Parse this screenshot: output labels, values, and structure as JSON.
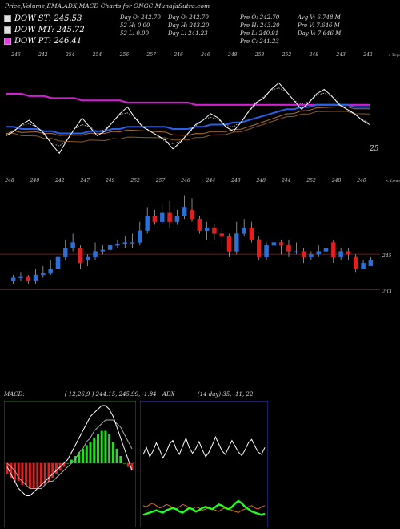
{
  "title": "Price,Volume,EMA,ADX,MACD Charts for ONGC MunafaSutra.com",
  "legend": [
    {
      "label": "DOW ST: 245.53",
      "color": "#e0e0e0"
    },
    {
      "label": "DOW MT: 245.72",
      "color": "#e0e0e0"
    },
    {
      "label": "DOW PT: 246.41",
      "color": "#e040e0"
    }
  ],
  "stats": {
    "col1": [
      "Day O: 242.70",
      "52 H: 0.00",
      "Day H: 243.20",
      "Day L: 241.23"
    ],
    "col2": [
      "Pre O: 242.70",
      "Pre H: 243.20",
      "Pre L: 240.91",
      "Pre C: 241.23"
    ],
    "col3": [
      "Avg V: 6.748 M",
      "Pre V: 7.646 M",
      "Day V: 7.646 M"
    ],
    "col1b": [
      "52 L: 0.00"
    ]
  },
  "macd_header": {
    "label": "MACD:",
    "values": "( 12,26,9 ) 244.15, 245.99, -1.84"
  },
  "adx_header": {
    "label": "ADX",
    "values": "(14 day) 35, -11, 22"
  },
  "colors": {
    "up": "#2c6fd6",
    "down": "#e02020",
    "ema_blue": "#2a60e8",
    "ema_magenta": "#d020d0",
    "macd_hist_up": "#22dd22",
    "macd_hist_down": "#dd2222",
    "grid_red": "#a01010",
    "adx_green": "#22ff22",
    "adx_orange": "#e07010"
  },
  "chart_data": [
    {
      "type": "line",
      "name_ref": "ema-panel",
      "top_tick_labels": [
        "246",
        "242",
        "254",
        "254",
        "256",
        "257",
        "246",
        "246",
        "248",
        "258",
        "252",
        "248",
        "243",
        "242"
      ],
      "right_note": "< Tops",
      "side_label": "25",
      "price_line": [
        228,
        230,
        233,
        235,
        232,
        229,
        224,
        220,
        226,
        231,
        236,
        232,
        228,
        230,
        234,
        238,
        241,
        236,
        232,
        230,
        228,
        226,
        222,
        225,
        229,
        233,
        235,
        238,
        236,
        232,
        230,
        234,
        239,
        243,
        245,
        249,
        252,
        248,
        244,
        240,
        243,
        247,
        249,
        246,
        242,
        240,
        238,
        235,
        233
      ],
      "ema_blue": [
        232,
        232,
        231,
        231,
        231,
        230,
        230,
        229,
        229,
        229,
        229,
        230,
        230,
        230,
        231,
        231,
        232,
        232,
        232,
        232,
        232,
        232,
        231,
        231,
        231,
        232,
        232,
        233,
        233,
        233,
        234,
        234,
        235,
        236,
        237,
        238,
        239,
        240,
        240,
        241,
        241,
        242,
        242,
        242,
        242,
        242,
        241,
        241,
        241
      ],
      "ema_magenta": [
        247,
        247,
        247,
        246,
        246,
        246,
        245,
        245,
        245,
        245,
        244,
        244,
        244,
        244,
        244,
        244,
        243,
        243,
        243,
        243,
        243,
        243,
        243,
        243,
        243,
        242,
        242,
        242,
        242,
        242,
        242,
        242,
        242,
        242,
        242,
        242,
        242,
        242,
        242,
        242,
        242,
        242,
        242,
        242,
        242,
        242,
        242,
        242,
        242
      ]
    },
    {
      "type": "bar",
      "name_ref": "candle-panel",
      "top_tick_labels": [
        "248",
        "240",
        "242",
        "247",
        "249",
        "252",
        "257",
        "246",
        "244",
        "248",
        "248",
        "244",
        "252",
        "248",
        "240"
      ],
      "right_note": "< Lows",
      "levels": [
        {
          "label": "245",
          "value": 245
        },
        {
          "label": "233",
          "value": 233
        }
      ],
      "candles": [
        {
          "o": 236,
          "c": 237,
          "h": 238,
          "l": 235
        },
        {
          "o": 237,
          "c": 237.5,
          "h": 239,
          "l": 236
        },
        {
          "o": 237.5,
          "c": 236,
          "h": 238,
          "l": 235
        },
        {
          "o": 236,
          "c": 238,
          "h": 240,
          "l": 235
        },
        {
          "o": 238,
          "c": 238.5,
          "h": 241,
          "l": 237
        },
        {
          "o": 238.5,
          "c": 240,
          "h": 243,
          "l": 238
        },
        {
          "o": 240,
          "c": 244,
          "h": 246,
          "l": 239
        },
        {
          "o": 244,
          "c": 247,
          "h": 250,
          "l": 243
        },
        {
          "o": 247,
          "c": 249,
          "h": 252,
          "l": 246
        },
        {
          "o": 247,
          "c": 242,
          "h": 248,
          "l": 240
        },
        {
          "o": 243,
          "c": 244,
          "h": 245,
          "l": 241
        },
        {
          "o": 244,
          "c": 246,
          "h": 249,
          "l": 243
        },
        {
          "o": 246,
          "c": 246.5,
          "h": 248,
          "l": 245
        },
        {
          "o": 246.5,
          "c": 248,
          "h": 252,
          "l": 245
        },
        {
          "o": 248,
          "c": 248.5,
          "h": 250,
          "l": 247
        },
        {
          "o": 248.5,
          "c": 249,
          "h": 251,
          "l": 247
        },
        {
          "o": 249,
          "c": 249,
          "h": 252,
          "l": 247
        },
        {
          "o": 249,
          "c": 253,
          "h": 256,
          "l": 248
        },
        {
          "o": 253,
          "c": 258,
          "h": 261,
          "l": 252
        },
        {
          "o": 258,
          "c": 256,
          "h": 260,
          "l": 255
        },
        {
          "o": 256,
          "c": 259,
          "h": 262,
          "l": 255
        },
        {
          "o": 259,
          "c": 256,
          "h": 263,
          "l": 254
        },
        {
          "o": 256,
          "c": 258,
          "h": 260,
          "l": 255
        },
        {
          "o": 258,
          "c": 261,
          "h": 265,
          "l": 257
        },
        {
          "o": 260,
          "c": 257,
          "h": 264,
          "l": 256
        },
        {
          "o": 257,
          "c": 253,
          "h": 258,
          "l": 252
        },
        {
          "o": 253,
          "c": 254,
          "h": 256,
          "l": 250
        },
        {
          "o": 254,
          "c": 252,
          "h": 255,
          "l": 250
        },
        {
          "o": 252,
          "c": 251,
          "h": 254,
          "l": 248
        },
        {
          "o": 251,
          "c": 246,
          "h": 252,
          "l": 244
        },
        {
          "o": 246,
          "c": 252,
          "h": 256,
          "l": 245
        },
        {
          "o": 252,
          "c": 254,
          "h": 257,
          "l": 251
        },
        {
          "o": 254,
          "c": 250,
          "h": 256,
          "l": 249
        },
        {
          "o": 250,
          "c": 244,
          "h": 251,
          "l": 243
        },
        {
          "o": 244,
          "c": 248,
          "h": 249,
          "l": 243
        },
        {
          "o": 248,
          "c": 249,
          "h": 250,
          "l": 246
        },
        {
          "o": 249,
          "c": 248,
          "h": 250,
          "l": 245
        },
        {
          "o": 248,
          "c": 246,
          "h": 250,
          "l": 244
        },
        {
          "o": 246,
          "c": 246,
          "h": 249,
          "l": 245
        },
        {
          "o": 246,
          "c": 244,
          "h": 247,
          "l": 242
        },
        {
          "o": 244,
          "c": 245,
          "h": 246,
          "l": 243
        },
        {
          "o": 245,
          "c": 246,
          "h": 248,
          "l": 244
        },
        {
          "o": 246,
          "c": 247,
          "h": 249,
          "l": 245
        },
        {
          "o": 249,
          "c": 244,
          "h": 250,
          "l": 242
        },
        {
          "o": 244,
          "c": 246,
          "h": 247,
          "l": 243
        },
        {
          "o": 246,
          "c": 245,
          "h": 247,
          "l": 243
        },
        {
          "o": 244,
          "c": 240,
          "h": 245,
          "l": 239
        },
        {
          "o": 240,
          "c": 242,
          "h": 243,
          "l": 240
        },
        {
          "o": 241,
          "c": 243,
          "h": 244,
          "l": 241
        }
      ]
    },
    {
      "type": "bar",
      "name_ref": "macd-panel",
      "histogram": [
        -3,
        -4,
        -5,
        -5,
        -6,
        -6,
        -7,
        -7,
        -7,
        -6,
        -6,
        -5,
        -4,
        -3,
        -2,
        -1,
        0,
        1,
        2,
        3,
        4,
        5,
        6,
        7,
        8,
        9,
        9,
        8,
        6,
        4,
        2,
        0,
        -1,
        -2
      ],
      "macd": [
        -1,
        -3,
        -5,
        -7,
        -8,
        -9,
        -9,
        -8,
        -7,
        -6,
        -5,
        -4,
        -3,
        -2,
        -1,
        0,
        1,
        3,
        5,
        7,
        9,
        11,
        13,
        14,
        15,
        16,
        16,
        15,
        13,
        10,
        7,
        4,
        1,
        -2
      ],
      "signal": [
        0,
        -1,
        -2,
        -4,
        -5,
        -6,
        -7,
        -7,
        -7,
        -7,
        -6,
        -5,
        -5,
        -4,
        -3,
        -2,
        -1,
        0,
        1,
        3,
        4,
        6,
        7,
        9,
        10,
        11,
        12,
        12,
        12,
        11,
        10,
        8,
        6,
        4
      ]
    },
    {
      "type": "line",
      "name_ref": "adx-panel",
      "white": [
        60,
        66,
        58,
        63,
        70,
        64,
        57,
        62,
        69,
        72,
        65,
        60,
        67,
        74,
        66,
        61,
        65,
        71,
        64,
        58,
        62,
        68,
        75,
        69,
        63,
        60,
        66,
        72,
        67,
        62,
        59,
        64,
        70,
        73,
        67,
        62,
        60,
        66
      ],
      "green": [
        8,
        9,
        10,
        11,
        12,
        11,
        10,
        12,
        13,
        14,
        13,
        11,
        10,
        12,
        14,
        13,
        11,
        12,
        14,
        15,
        14,
        13,
        15,
        17,
        16,
        14,
        13,
        15,
        18,
        20,
        18,
        15,
        13,
        11,
        10,
        9,
        8,
        9
      ],
      "orange": [
        16,
        15,
        17,
        18,
        16,
        14,
        15,
        17,
        16,
        14,
        13,
        15,
        17,
        16,
        14,
        13,
        15,
        14,
        12,
        13,
        14,
        13,
        12,
        11,
        13,
        14,
        13,
        12,
        11,
        10,
        12,
        13,
        15,
        16,
        14,
        13,
        15,
        16
      ]
    }
  ]
}
